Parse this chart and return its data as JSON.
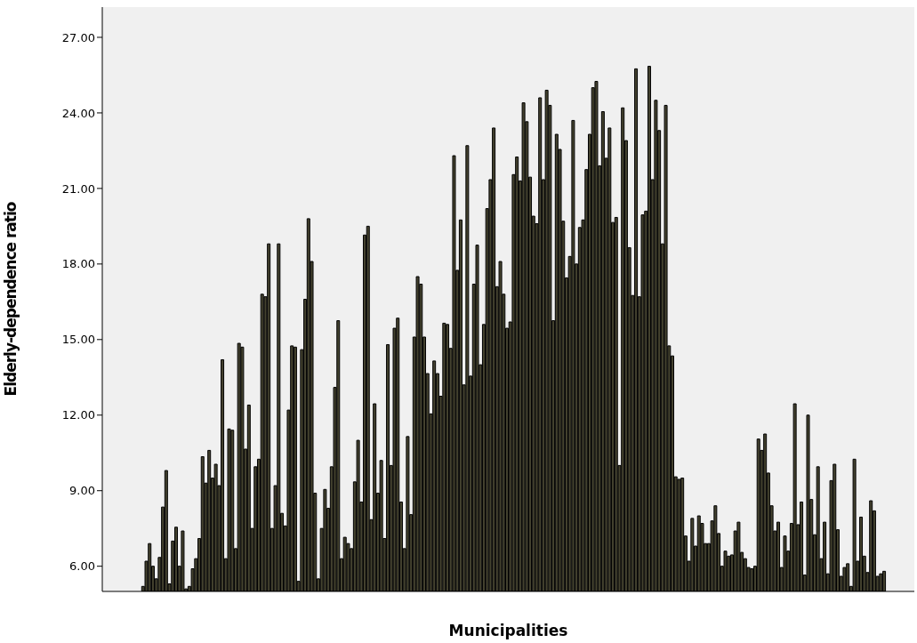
{
  "chart_data": {
    "type": "bar",
    "xlabel": "Municipalities",
    "ylabel": "Elderly-dependence ratio",
    "ylim": [
      5.0,
      28.2
    ],
    "yticks": [
      {
        "value": 6,
        "label": "6.00"
      },
      {
        "value": 9,
        "label": "9.00"
      },
      {
        "value": 12,
        "label": "12.00"
      },
      {
        "value": 15,
        "label": "15.00"
      },
      {
        "value": 18,
        "label": "18.00"
      },
      {
        "value": 21,
        "label": "21.00"
      },
      {
        "value": 24,
        "label": "24.00"
      },
      {
        "value": 27,
        "label": "27.00"
      }
    ],
    "color": "#44422f",
    "values": [
      5.2,
      6.2,
      6.9,
      6.0,
      5.5,
      6.35,
      8.35,
      9.8,
      5.3,
      7.0,
      7.55,
      6.0,
      7.4,
      5.1,
      5.2,
      5.9,
      6.3,
      7.1,
      10.35,
      9.3,
      10.6,
      9.5,
      10.05,
      9.2,
      14.2,
      6.3,
      11.45,
      11.4,
      6.7,
      14.85,
      14.7,
      10.65,
      12.4,
      7.5,
      9.95,
      10.25,
      16.8,
      16.7,
      18.8,
      7.5,
      9.2,
      18.8,
      8.1,
      7.6,
      12.2,
      14.75,
      14.7,
      5.4,
      14.6,
      16.6,
      19.8,
      18.1,
      8.9,
      5.5,
      7.5,
      9.05,
      8.3,
      9.95,
      13.1,
      15.75,
      6.3,
      7.15,
      6.9,
      6.7,
      9.35,
      11.0,
      8.55,
      19.15,
      19.5,
      7.85,
      12.45,
      8.9,
      10.2,
      7.1,
      14.8,
      10.0,
      15.45,
      15.85,
      8.55,
      6.7,
      11.15,
      8.05,
      15.1,
      17.5,
      17.2,
      15.1,
      13.65,
      12.05,
      14.15,
      13.65,
      12.75,
      15.65,
      15.6,
      14.65,
      22.3,
      17.75,
      19.75,
      13.2,
      22.7,
      13.55,
      17.2,
      18.75,
      14.0,
      15.6,
      20.2,
      21.35,
      23.4,
      17.1,
      18.1,
      16.8,
      15.45,
      15.7,
      21.55,
      22.25,
      21.3,
      24.4,
      23.65,
      21.45,
      19.9,
      19.6,
      24.6,
      21.35,
      24.9,
      24.3,
      15.75,
      23.15,
      22.55,
      19.7,
      17.45,
      18.3,
      23.7,
      18.0,
      19.45,
      19.75,
      21.75,
      23.15,
      25.0,
      25.25,
      21.9,
      24.05,
      22.2,
      23.4,
      19.65,
      19.85,
      10.0,
      24.2,
      22.9,
      18.65,
      16.75,
      25.75,
      16.7,
      19.95,
      20.1,
      25.85,
      21.35,
      24.5,
      23.3,
      18.8,
      24.3,
      14.75,
      14.35,
      9.55,
      9.45,
      9.5,
      7.2,
      6.2,
      7.9,
      6.8,
      8.0,
      7.7,
      6.9,
      6.9,
      7.8,
      8.4,
      7.3,
      6.0,
      6.6,
      6.4,
      6.45,
      7.4,
      7.75,
      6.55,
      6.3,
      5.95,
      5.9,
      6.0,
      11.05,
      10.6,
      11.25,
      9.7,
      8.4,
      7.4,
      7.75,
      5.95,
      7.2,
      6.6,
      7.7,
      12.45,
      7.65,
      8.55,
      5.65,
      12.0,
      8.65,
      7.25,
      9.95,
      6.3,
      7.75,
      5.7,
      9.4,
      10.05,
      7.45,
      5.6,
      5.95,
      6.1,
      5.2,
      10.25,
      6.2,
      7.95,
      6.4,
      5.75,
      8.6,
      8.2,
      5.6,
      5.7,
      5.8
    ]
  }
}
